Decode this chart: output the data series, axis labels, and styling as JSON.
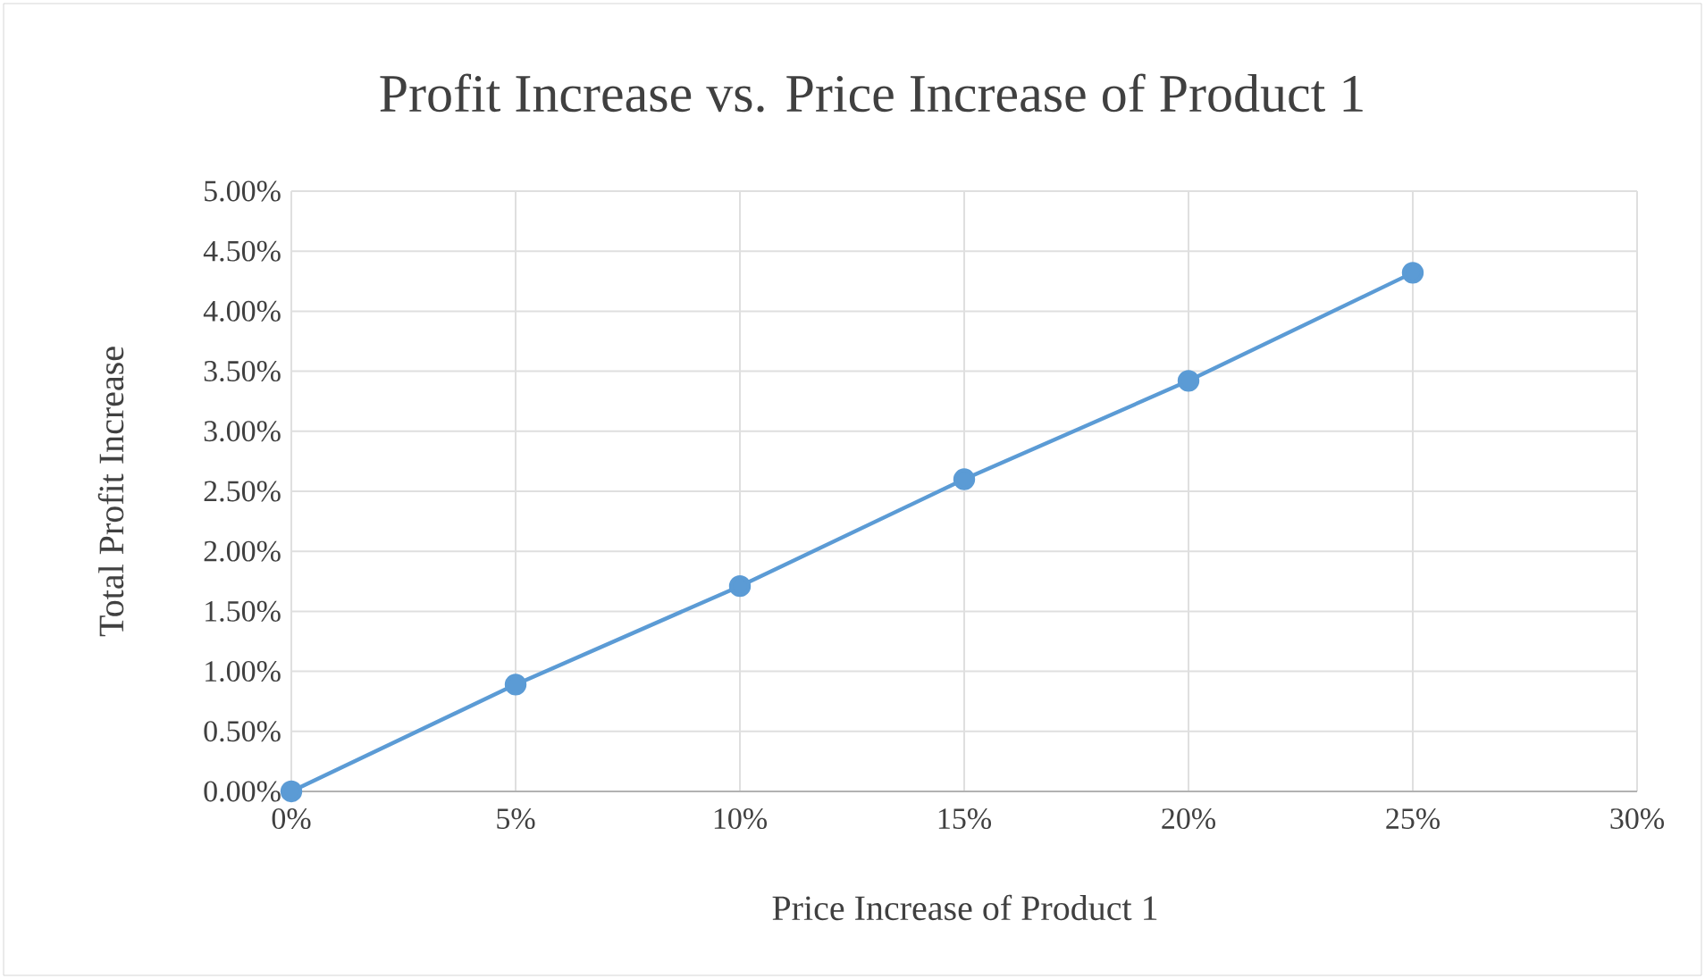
{
  "chart_data": {
    "type": "line",
    "title": "Profit Increase vs. Price Increase of Product 1",
    "xlabel": "Price Increase of Product 1",
    "ylabel": "Total Profit Increase",
    "x": [
      0,
      5,
      10,
      15,
      20,
      25
    ],
    "series": [
      {
        "color": "#5b9bd5",
        "values": [
          0,
          0.89,
          1.71,
          2.6,
          3.42,
          4.32
        ]
      }
    ],
    "xlim": [
      0,
      30
    ],
    "xticks": [
      {
        "value": 0,
        "label": "0%"
      },
      {
        "value": 5,
        "label": "5%"
      },
      {
        "value": 10,
        "label": "10%"
      },
      {
        "value": 15,
        "label": "15%"
      },
      {
        "value": 20,
        "label": "20%"
      },
      {
        "value": 25,
        "label": "25%"
      },
      {
        "value": 30,
        "label": "30%"
      }
    ],
    "ylim": [
      0,
      5
    ],
    "yticks": [
      {
        "value": 0,
        "label": "0.00%"
      },
      {
        "value": 0.5,
        "label": "0.50%"
      },
      {
        "value": 1,
        "label": "1.00%"
      },
      {
        "value": 1.5,
        "label": "1.50%"
      },
      {
        "value": 2,
        "label": "2.00%"
      },
      {
        "value": 2.5,
        "label": "2.50%"
      },
      {
        "value": 3,
        "label": "3.00%"
      },
      {
        "value": 3.5,
        "label": "3.50%"
      },
      {
        "value": 4,
        "label": "4.00%"
      },
      {
        "value": 4.5,
        "label": "4.50%"
      },
      {
        "value": 5,
        "label": "5.00%"
      }
    ],
    "grid": true,
    "marker": "circle",
    "line_style": "solid"
  }
}
